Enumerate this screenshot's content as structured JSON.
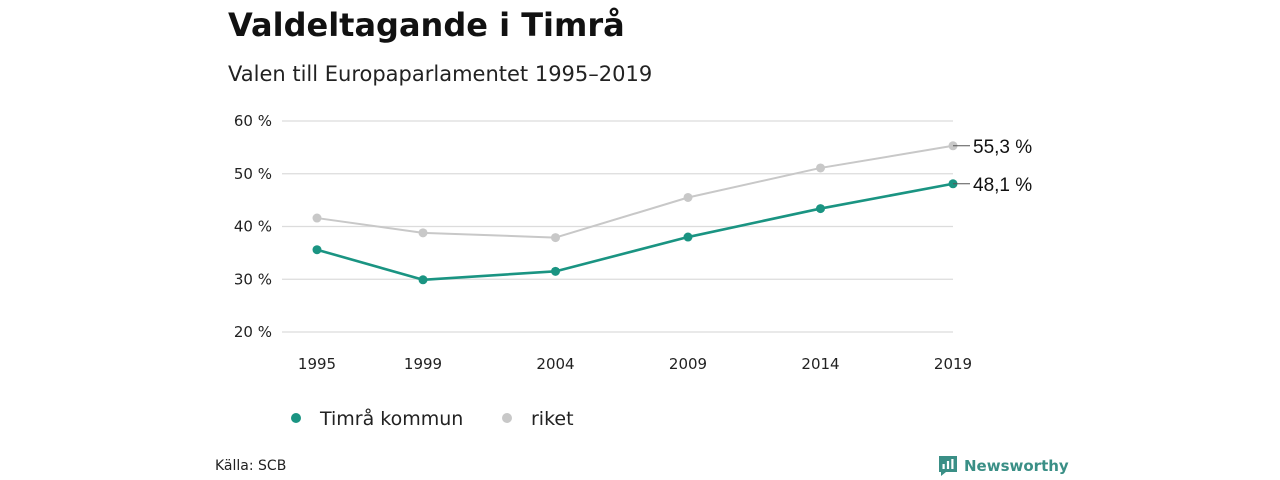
{
  "chart_data": {
    "type": "line",
    "title": "Valdeltagande i Timrå",
    "subtitle": "Valen till Europaparlamentet 1995–2019",
    "x": [
      "1995",
      "1999",
      "2004",
      "2009",
      "2014",
      "2019"
    ],
    "ylim": [
      20,
      60
    ],
    "yticks": [
      20,
      30,
      40,
      50,
      60
    ],
    "ytick_labels": [
      "20 %",
      "30 %",
      "40 %",
      "50 %",
      "60 %"
    ],
    "grid": true,
    "legend_position": "bottom-left",
    "series": [
      {
        "name": "Timrå kommun",
        "color": "#1a9482",
        "values": [
          35.6,
          29.9,
          31.5,
          38.0,
          43.4,
          48.1
        ],
        "end_label": "48,1 %"
      },
      {
        "name": "riket",
        "color": "#c8c8c8",
        "values": [
          41.6,
          38.8,
          37.9,
          45.5,
          51.1,
          55.3
        ],
        "end_label": "55,3 %"
      }
    ]
  },
  "footer": {
    "source": "Källa: SCB",
    "brand": "Newsworthy",
    "brand_icon": "newsworthy-logo-icon",
    "brand_color": "#3a8f86"
  }
}
